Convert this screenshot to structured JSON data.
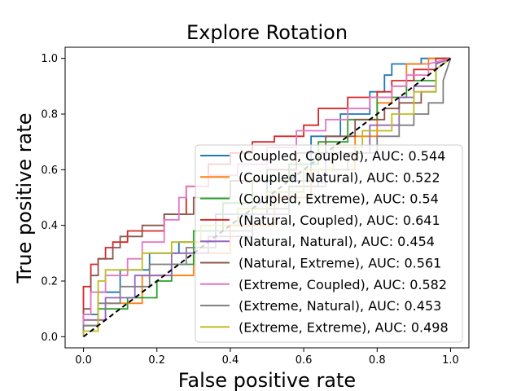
{
  "chart_data": {
    "type": "line",
    "title": "Explore Rotation",
    "xlabel": "False positive rate",
    "ylabel": "True positive rate",
    "xlim": [
      -0.05,
      1.05
    ],
    "ylim": [
      -0.04,
      1.04
    ],
    "xticks": [
      "0.0",
      "0.2",
      "0.4",
      "0.6",
      "0.8",
      "1.0"
    ],
    "yticks": [
      "0.0",
      "0.2",
      "0.4",
      "0.6",
      "0.8",
      "1.0"
    ],
    "legend_position": "lower-right",
    "grid": false,
    "diagonal": {
      "color": "#000000",
      "style": "dashed"
    },
    "series": [
      {
        "name": "(Coupled, Coupled), AUC: 0.544",
        "color": "#1f77b4",
        "x": [
          0,
          0,
          0.04,
          0.04,
          0.1,
          0.1,
          0.18,
          0.18,
          0.26,
          0.26,
          0.36,
          0.36,
          0.5,
          0.5,
          0.62,
          0.62,
          0.7,
          0.7,
          0.78,
          0.78,
          0.82,
          0.82,
          0.84,
          0.84,
          0.92,
          0.92,
          1.0
        ],
        "y": [
          0,
          0.08,
          0.08,
          0.16,
          0.16,
          0.24,
          0.24,
          0.3,
          0.3,
          0.34,
          0.34,
          0.44,
          0.44,
          0.56,
          0.56,
          0.72,
          0.72,
          0.8,
          0.8,
          0.88,
          0.88,
          0.94,
          0.94,
          0.98,
          0.98,
          1.0,
          1.0
        ]
      },
      {
        "name": "(Coupled, Natural), AUC: 0.522",
        "color": "#ff7f0e",
        "x": [
          0,
          0,
          0.06,
          0.06,
          0.16,
          0.16,
          0.3,
          0.3,
          0.4,
          0.4,
          0.52,
          0.52,
          0.62,
          0.62,
          0.74,
          0.74,
          0.8,
          0.8,
          0.84,
          0.84,
          0.88,
          0.88,
          0.94,
          0.94,
          1.0
        ],
        "y": [
          0,
          0.06,
          0.06,
          0.12,
          0.12,
          0.22,
          0.22,
          0.3,
          0.3,
          0.4,
          0.4,
          0.5,
          0.5,
          0.6,
          0.6,
          0.72,
          0.72,
          0.84,
          0.84,
          0.9,
          0.9,
          0.98,
          0.98,
          1.0,
          1.0
        ]
      },
      {
        "name": "(Coupled, Extreme), AUC: 0.54",
        "color": "#2ca02c",
        "x": [
          0,
          0,
          0.04,
          0.04,
          0.12,
          0.12,
          0.2,
          0.2,
          0.24,
          0.24,
          0.3,
          0.3,
          0.38,
          0.38,
          0.46,
          0.46,
          0.56,
          0.56,
          0.64,
          0.64,
          0.72,
          0.72,
          0.8,
          0.8,
          0.88,
          0.88,
          0.96,
          0.96,
          1.0
        ],
        "y": [
          0,
          0.04,
          0.04,
          0.1,
          0.1,
          0.14,
          0.14,
          0.2,
          0.2,
          0.26,
          0.26,
          0.38,
          0.38,
          0.48,
          0.48,
          0.56,
          0.56,
          0.62,
          0.62,
          0.7,
          0.7,
          0.78,
          0.78,
          0.86,
          0.86,
          0.92,
          0.92,
          0.98,
          1.0
        ]
      },
      {
        "name": "(Natural, Coupled), AUC: 0.641",
        "color": "#d62728",
        "x": [
          0,
          0,
          0.02,
          0.02,
          0.04,
          0.04,
          0.06,
          0.06,
          0.08,
          0.08,
          0.12,
          0.12,
          0.22,
          0.22,
          0.28,
          0.28,
          0.34,
          0.34,
          0.4,
          0.4,
          0.46,
          0.46,
          0.52,
          0.52,
          0.6,
          0.6,
          0.64,
          0.64,
          0.72,
          0.72,
          0.8,
          0.8,
          0.84,
          0.84,
          0.9,
          0.9,
          0.96,
          0.96,
          1.0
        ],
        "y": [
          0,
          0.18,
          0.18,
          0.26,
          0.26,
          0.28,
          0.28,
          0.32,
          0.32,
          0.34,
          0.34,
          0.38,
          0.38,
          0.44,
          0.44,
          0.54,
          0.54,
          0.62,
          0.62,
          0.66,
          0.66,
          0.7,
          0.7,
          0.72,
          0.72,
          0.76,
          0.76,
          0.82,
          0.82,
          0.86,
          0.86,
          0.88,
          0.88,
          0.92,
          0.92,
          0.96,
          0.96,
          1.0,
          1.0
        ]
      },
      {
        "name": "(Natural, Natural), AUC: 0.454",
        "color": "#9467bd",
        "x": [
          0,
          0,
          0.06,
          0.06,
          0.14,
          0.14,
          0.24,
          0.24,
          0.34,
          0.34,
          0.46,
          0.46,
          0.56,
          0.56,
          0.66,
          0.66,
          0.78,
          0.78,
          0.86,
          0.86,
          0.9,
          0.9,
          0.96,
          0.96,
          1.0
        ],
        "y": [
          0,
          0.06,
          0.06,
          0.14,
          0.14,
          0.22,
          0.22,
          0.3,
          0.3,
          0.36,
          0.36,
          0.44,
          0.44,
          0.54,
          0.54,
          0.66,
          0.66,
          0.76,
          0.76,
          0.86,
          0.86,
          0.9,
          0.9,
          0.98,
          1.0
        ]
      },
      {
        "name": "(Natural, Extreme), AUC: 0.561",
        "color": "#8c564b",
        "x": [
          0,
          0,
          0.02,
          0.02,
          0.04,
          0.04,
          0.08,
          0.08,
          0.1,
          0.1,
          0.16,
          0.16,
          0.22,
          0.22,
          0.3,
          0.3,
          0.4,
          0.4,
          0.5,
          0.5,
          0.58,
          0.58,
          0.66,
          0.66,
          0.74,
          0.74,
          0.82,
          0.82,
          0.86,
          0.86,
          0.92,
          0.92,
          0.96,
          0.96,
          1.0
        ],
        "y": [
          0,
          0.1,
          0.1,
          0.22,
          0.22,
          0.28,
          0.28,
          0.32,
          0.32,
          0.36,
          0.36,
          0.4,
          0.4,
          0.44,
          0.44,
          0.5,
          0.5,
          0.56,
          0.56,
          0.6,
          0.6,
          0.66,
          0.66,
          0.72,
          0.72,
          0.78,
          0.78,
          0.82,
          0.82,
          0.84,
          0.84,
          0.88,
          0.88,
          0.96,
          1.0
        ]
      },
      {
        "name": "(Extreme, Coupled), AUC: 0.582",
        "color": "#e377c2",
        "x": [
          0,
          0,
          0.02,
          0.02,
          0.06,
          0.06,
          0.12,
          0.12,
          0.16,
          0.16,
          0.22,
          0.22,
          0.26,
          0.26,
          0.28,
          0.28,
          0.34,
          0.34,
          0.42,
          0.42,
          0.5,
          0.5,
          0.58,
          0.58,
          0.66,
          0.66,
          0.72,
          0.72,
          0.78,
          0.78,
          0.84,
          0.84,
          0.88,
          0.88,
          0.94,
          0.94,
          1.0
        ],
        "y": [
          0,
          0.08,
          0.08,
          0.16,
          0.16,
          0.22,
          0.22,
          0.28,
          0.28,
          0.34,
          0.34,
          0.42,
          0.42,
          0.5,
          0.5,
          0.54,
          0.54,
          0.58,
          0.58,
          0.62,
          0.62,
          0.68,
          0.68,
          0.74,
          0.74,
          0.78,
          0.78,
          0.82,
          0.82,
          0.86,
          0.86,
          0.9,
          0.9,
          0.94,
          0.94,
          0.98,
          1.0
        ]
      },
      {
        "name": "(Extreme, Natural), AUC: 0.453",
        "color": "#7f7f7f",
        "x": [
          0,
          0,
          0.04,
          0.04,
          0.1,
          0.1,
          0.18,
          0.18,
          0.28,
          0.28,
          0.36,
          0.36,
          0.46,
          0.46,
          0.56,
          0.56,
          0.64,
          0.64,
          0.72,
          0.72,
          0.8,
          0.8,
          0.86,
          0.86,
          0.9,
          0.9,
          0.94,
          0.94,
          0.98,
          0.98,
          1.0
        ],
        "y": [
          0,
          0.04,
          0.04,
          0.12,
          0.12,
          0.18,
          0.18,
          0.26,
          0.26,
          0.32,
          0.32,
          0.38,
          0.38,
          0.46,
          0.46,
          0.54,
          0.54,
          0.6,
          0.6,
          0.66,
          0.66,
          0.72,
          0.72,
          0.76,
          0.76,
          0.8,
          0.8,
          0.84,
          0.84,
          0.92,
          1.0
        ]
      },
      {
        "name": "(Extreme, Extreme), AUC: 0.498",
        "color": "#bcbd22",
        "x": [
          0,
          0,
          0.04,
          0.04,
          0.06,
          0.06,
          0.16,
          0.16,
          0.24,
          0.24,
          0.32,
          0.32,
          0.42,
          0.42,
          0.5,
          0.5,
          0.6,
          0.6,
          0.68,
          0.68,
          0.76,
          0.76,
          0.84,
          0.84,
          0.9,
          0.9,
          0.96,
          0.96,
          1.0
        ],
        "y": [
          0,
          0.02,
          0.02,
          0.2,
          0.2,
          0.24,
          0.24,
          0.3,
          0.3,
          0.34,
          0.34,
          0.4,
          0.4,
          0.46,
          0.46,
          0.52,
          0.52,
          0.6,
          0.6,
          0.68,
          0.68,
          0.74,
          0.74,
          0.8,
          0.8,
          0.88,
          0.88,
          0.96,
          1.0
        ]
      }
    ]
  }
}
